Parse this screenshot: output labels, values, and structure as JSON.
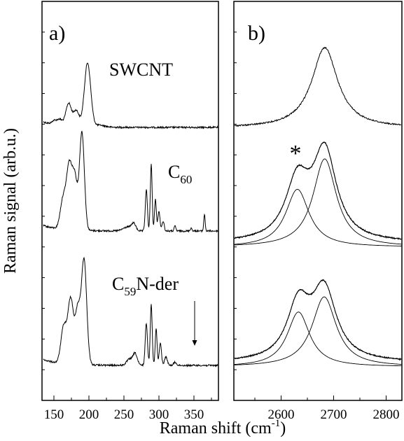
{
  "figure": {
    "ylabel": "Raman signal (arb.u.)",
    "xlabel_main": "Raman shift (cm",
    "xlabel_sup": "-1",
    "xlabel_close": ")"
  },
  "chart_data": [
    {
      "type": "line",
      "panel_label": "a)",
      "xlim": [
        133,
        385
      ],
      "xticks": [
        150,
        200,
        250,
        300,
        350
      ],
      "xticklabels": [
        "150",
        "200",
        "250",
        "300",
        "350"
      ],
      "y_ticks_labeled": false,
      "grid": false,
      "series": [
        {
          "name": "SWCNT",
          "name_parts": {
            "main": "SWCNT",
            "sub": "",
            "rest": ""
          },
          "baseline": 0.9,
          "peaks": [
            {
              "x": 150,
              "h": 0.5,
              "w": 3
            },
            {
              "x": 158,
              "h": 0.9,
              "w": 4
            },
            {
              "x": 171,
              "h": 3.4,
              "w": 4
            },
            {
              "x": 182,
              "h": 2.4,
              "w": 4
            },
            {
              "x": 198,
              "h": 9.6,
              "w": 4.5
            },
            {
              "x": 215,
              "h": 0.3,
              "w": 8
            }
          ]
        },
        {
          "name": "C60",
          "name_parts": {
            "main": "C",
            "sub": "60",
            "rest": ""
          },
          "baseline": 0.6,
          "peaks": [
            {
              "x": 163,
              "h": 3.0,
              "w": 4
            },
            {
              "x": 172,
              "h": 6.5,
              "w": 4
            },
            {
              "x": 180,
              "h": 5.0,
              "w": 3.5
            },
            {
              "x": 190,
              "h": 10.0,
              "w": 3.5
            },
            {
              "x": 255,
              "h": 0.4,
              "w": 6
            },
            {
              "x": 264,
              "h": 0.7,
              "w": 3
            },
            {
              "x": 282,
              "h": 4.2,
              "w": 1.5
            },
            {
              "x": 289,
              "h": 6.8,
              "w": 1.3
            },
            {
              "x": 295,
              "h": 3.2,
              "w": 1.3
            },
            {
              "x": 300,
              "h": 2.0,
              "w": 1.5
            },
            {
              "x": 306,
              "h": 1.0,
              "w": 1.5
            },
            {
              "x": 323,
              "h": 0.5,
              "w": 1.2
            },
            {
              "x": 346,
              "h": 0.3,
              "w": 1.2
            },
            {
              "x": 365,
              "h": 1.7,
              "w": 1.0
            }
          ]
        },
        {
          "name": "C59N-der",
          "name_parts": {
            "main": "C",
            "sub": "59",
            "rest": "N-der"
          },
          "baseline": 0.6,
          "peaks": [
            {
              "x": 164,
              "h": 3.5,
              "w": 4
            },
            {
              "x": 174,
              "h": 6.2,
              "w": 4
            },
            {
              "x": 184,
              "h": 5.0,
              "w": 3.5
            },
            {
              "x": 193,
              "h": 10.0,
              "w": 3.8
            },
            {
              "x": 258,
              "h": 0.6,
              "w": 4
            },
            {
              "x": 266,
              "h": 1.1,
              "w": 3
            },
            {
              "x": 282,
              "h": 4.0,
              "w": 1.6
            },
            {
              "x": 289,
              "h": 5.8,
              "w": 1.4
            },
            {
              "x": 296,
              "h": 3.5,
              "w": 1.3
            },
            {
              "x": 302,
              "h": 2.1,
              "w": 1.6
            },
            {
              "x": 310,
              "h": 0.8,
              "w": 2
            },
            {
              "x": 323,
              "h": 0.3,
              "w": 2
            }
          ],
          "arrow_at_x": 365
        }
      ]
    },
    {
      "type": "line",
      "panel_label": "b)",
      "xlim": [
        2510,
        2830
      ],
      "xticks": [
        2600,
        2700,
        2800
      ],
      "xticklabels": [
        "2600",
        "2700",
        "2800"
      ],
      "y_ticks_labeled": false,
      "grid": false,
      "annotation": "*",
      "annotation_x": 2640,
      "series": [
        {
          "components": [
            {
              "center": 2683,
              "height": 1.0,
              "hwhm": 30
            }
          ]
        },
        {
          "components": [
            {
              "center": 2631,
              "height": 0.59,
              "hwhm": 27
            },
            {
              "center": 2683,
              "height": 0.9,
              "hwhm": 27
            }
          ],
          "fit_components_drawn": true
        },
        {
          "components": [
            {
              "center": 2633,
              "height": 0.58,
              "hwhm": 26
            },
            {
              "center": 2682,
              "height": 0.74,
              "hwhm": 28
            }
          ],
          "fit_components_drawn": true
        }
      ]
    }
  ]
}
